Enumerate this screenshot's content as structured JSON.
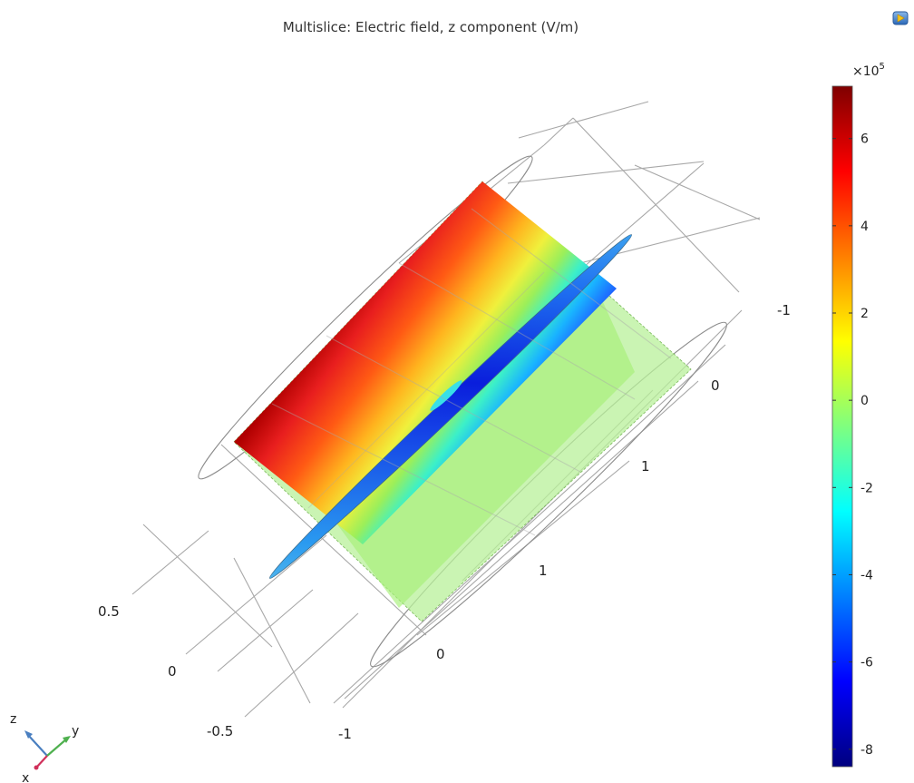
{
  "title": "Multislice: Electric field, z component (V/m)",
  "chart_data": {
    "type": "heatmap",
    "title": "Multislice: Electric field, z component (V/m)",
    "plot_kind": "3D multislice",
    "quantity": "Electric field, z component",
    "unit": "V/m",
    "colorbar": {
      "colormap": "rainbow",
      "exponent_label": "×10",
      "exponent_power": "5",
      "range": [
        -8.4,
        7.2
      ],
      "ticks": [
        6,
        4,
        2,
        0,
        -2,
        -4,
        -6,
        -8
      ],
      "tick_labels": [
        "6",
        "4",
        "2",
        "0",
        "-2",
        "-4",
        "-6",
        "-8"
      ],
      "colors": [
        "#00007f",
        "#0000ff",
        "#007fff",
        "#00ffff",
        "#7fff7f",
        "#ffff00",
        "#ff7f00",
        "#ff0000",
        "#7f0000"
      ]
    },
    "axes": {
      "axis1_tick_labels": [
        "0.5",
        "0",
        "-0.5"
      ],
      "axis2_tick_labels": [
        "-1",
        "0",
        "1"
      ],
      "axis3_tick_labels": [
        "1",
        "0",
        "-1"
      ]
    },
    "slice_summary": {
      "max_value": 7.2,
      "min_value": -8.4,
      "background_value": 0
    },
    "grid": true
  },
  "triad": {
    "z": "z",
    "y": "y",
    "x": "x"
  },
  "icons": {
    "export": "export-image-icon"
  }
}
